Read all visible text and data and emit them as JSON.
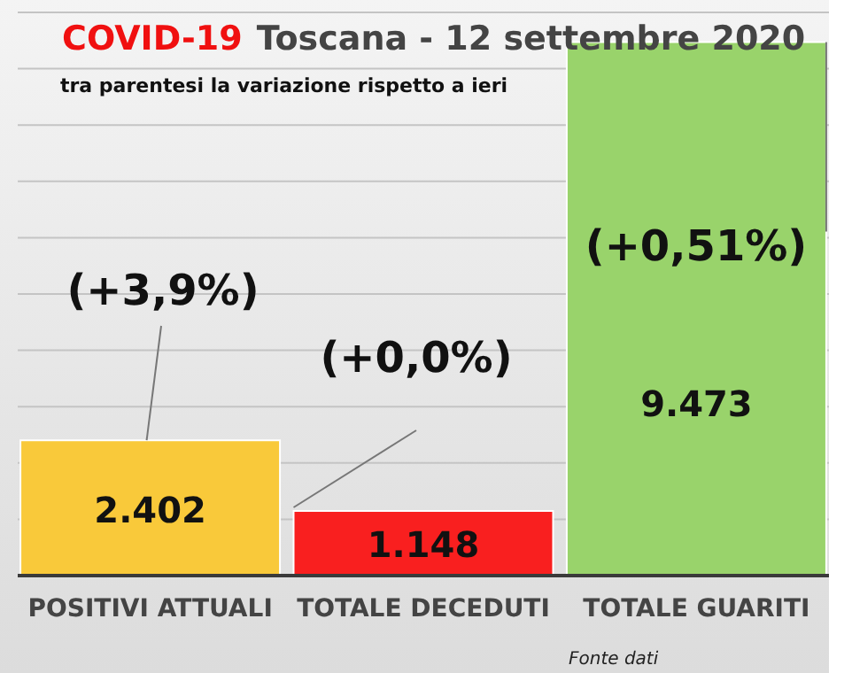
{
  "chart_data": {
    "type": "bar",
    "title": "COVID-19",
    "subtitle": "Toscana - 12 settembre 2020",
    "categories": [
      "POSITIVI ATTUALI",
      "TOTALE DECEDUTI",
      "TOTALE GUARITI"
    ],
    "values": [
      2402,
      1148,
      9473
    ],
    "colors": [
      "#f9c93a",
      "#f91f1f",
      "#99d36b"
    ],
    "value_labels": [
      "2.402",
      "1.148",
      "9.473"
    ],
    "ylim": [
      0,
      10000
    ],
    "yticks": [
      {
        "value": 0,
        "label": null
      },
      {
        "value": 1000,
        "label": null
      },
      {
        "value": 2000,
        "label": null
      },
      {
        "value": 3000,
        "label": null
      },
      {
        "value": 4000,
        "label": null
      },
      {
        "value": 5000,
        "label": null
      },
      {
        "value": 6000,
        "label": null
      },
      {
        "value": 7000,
        "label": null
      },
      {
        "value": 8000,
        "label": null
      },
      {
        "value": 9000,
        "label": null
      },
      {
        "value": 10000,
        "label": null
      }
    ],
    "grid": "y",
    "tick_labels": "x",
    "annotations": [
      "tra parentesi la variazione rispetto a ieri",
      "(+3,9%)",
      "(+0,0%)",
      "(+0,51%)",
      "Fonte dati"
    ]
  }
}
